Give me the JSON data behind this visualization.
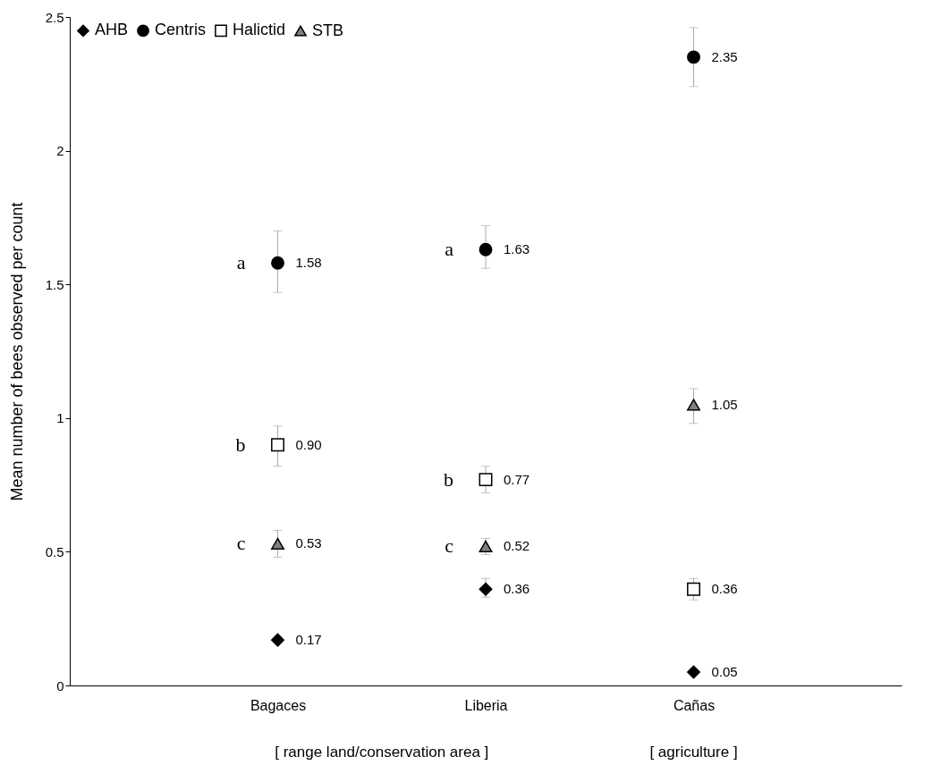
{
  "chart_data": {
    "type": "scatter",
    "ylabel": "Mean number of bees observed per count",
    "categories": [
      "Bagaces",
      "Liberia",
      "Cañas"
    ],
    "series": [
      {
        "name": "AHB",
        "color": "#000000",
        "marker": "diamond",
        "values": [
          0.17,
          0.36,
          0.05
        ],
        "value_labels": [
          "0.17",
          "0.36",
          "0.05"
        ],
        "errors": [
          null,
          [
            0.33,
            0.4
          ],
          null
        ]
      },
      {
        "name": "Centris",
        "color": "#000000",
        "marker": "circle",
        "values": [
          1.58,
          1.63,
          2.35
        ],
        "value_labels": [
          "1.58",
          "1.63",
          "2.35"
        ],
        "errors": [
          [
            1.47,
            1.7
          ],
          [
            1.56,
            1.72
          ],
          [
            2.24,
            2.46
          ]
        ]
      },
      {
        "name": "Halictid",
        "color": "#ffffff",
        "marker": "square",
        "values": [
          0.9,
          0.77,
          0.36
        ],
        "value_labels": [
          "0.90",
          "0.77",
          "0.36"
        ],
        "errors": [
          [
            0.82,
            0.97
          ],
          [
            0.72,
            0.82
          ],
          [
            0.32,
            0.4
          ]
        ]
      },
      {
        "name": "STB",
        "color": "#808080",
        "marker": "triangle",
        "values": [
          0.53,
          0.52,
          1.05
        ],
        "value_labels": [
          "0.53",
          "0.52",
          "1.05"
        ],
        "errors": [
          [
            0.48,
            0.58
          ],
          [
            0.49,
            0.55
          ],
          [
            0.98,
            1.11
          ]
        ]
      }
    ],
    "ylim": [
      0,
      2.5
    ],
    "yticks": [
      0,
      0.5,
      1,
      1.5,
      2,
      2.5
    ],
    "grid": false,
    "legend": "top left",
    "annotations": [
      {
        "text": "a",
        "x": "Bagaces",
        "y": 1.58
      },
      {
        "text": "b",
        "x": "Bagaces",
        "y": 0.9
      },
      {
        "text": "c",
        "x": "Bagaces",
        "y": 0.53
      },
      {
        "text": "a",
        "x": "Liberia",
        "y": 1.63
      },
      {
        "text": "b",
        "x": "Liberia",
        "y": 0.77
      },
      {
        "text": "c",
        "x": "Liberia",
        "y": 0.52
      },
      "[   range land/conservation area   ]",
      "[   agriculture   ]"
    ]
  }
}
